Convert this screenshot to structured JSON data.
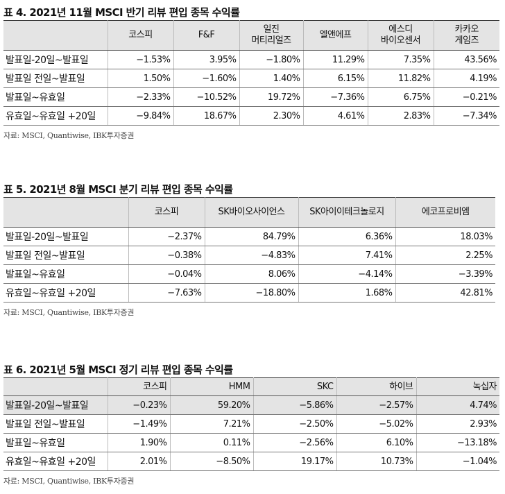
{
  "tables": [
    {
      "title": "표 4. 2021년 11월 MSCI 반기 리뷰 편입 종목 수익률",
      "headers": [
        "",
        "코스피",
        "F&F",
        "일진\n머티리얼즈",
        "엘앤에프",
        "에스디\n바이오센서",
        "카카오\n게임즈"
      ],
      "rows": [
        [
          "발표일-20일~발표일",
          "−1.53%",
          "3.95%",
          "−1.80%",
          "11.29%",
          "7.35%",
          "43.56%"
        ],
        [
          "발표일 전일~발표일",
          "1.50%",
          "−1.60%",
          "1.40%",
          "6.15%",
          "11.82%",
          "4.19%"
        ],
        [
          "발표일~유효일",
          "−2.33%",
          "−10.52%",
          "19.72%",
          "−7.36%",
          "6.75%",
          "−0.21%"
        ],
        [
          "유효일~유효일 +20일",
          "−9.84%",
          "18.67%",
          "2.30%",
          "4.61%",
          "2.83%",
          "−7.34%"
        ]
      ],
      "source": "자료: MSCI, Quantiwise, IBK투자증권"
    },
    {
      "title": "표 5. 2021년 8월 MSCI 분기 리뷰 편입 종목 수익률",
      "headers": [
        "",
        "코스피",
        "SK바이오사이언스",
        "SK아이이테크놀로지",
        "에코프로비엠"
      ],
      "rows": [
        [
          "발표일-20일~발표일",
          "−2.37%",
          "84.79%",
          "6.36%",
          "18.03%"
        ],
        [
          "발표일 전일~발표일",
          "−0.38%",
          "−4.83%",
          "7.41%",
          "2.25%"
        ],
        [
          "발표일~유효일",
          "−0.04%",
          "8.06%",
          "−4.14%",
          "−3.39%"
        ],
        [
          "유효일~유효일 +20일",
          "−7.63%",
          "−18.80%",
          "1.68%",
          "42.81%"
        ]
      ],
      "source": "자료: MSCI, Quantiwise, IBK투자증권"
    },
    {
      "title": "표 6. 2021년 5월 MSCI 정기 리뷰 편입 종목 수익률",
      "headers": [
        "",
        "코스피",
        "HMM",
        "SKC",
        "하이브",
        "녹십자"
      ],
      "rows": [
        [
          "발표일-20일~발표일",
          "−0.23%",
          "59.20%",
          "−5.86%",
          "−2.57%",
          "4.74%"
        ],
        [
          "발표일 전일~발표일",
          "−1.49%",
          "7.21%",
          "−2.50%",
          "−5.02%",
          "2.93%"
        ],
        [
          "발표일~유효일",
          "1.90%",
          "0.11%",
          "−2.56%",
          "6.10%",
          "−13.18%"
        ],
        [
          "유효일~유효일 +20일",
          "2.01%",
          "−8.50%",
          "19.17%",
          "10.73%",
          "−1.04%"
        ]
      ],
      "source": "자료: MSCI, Quantiwise, IBK투자증권"
    }
  ]
}
